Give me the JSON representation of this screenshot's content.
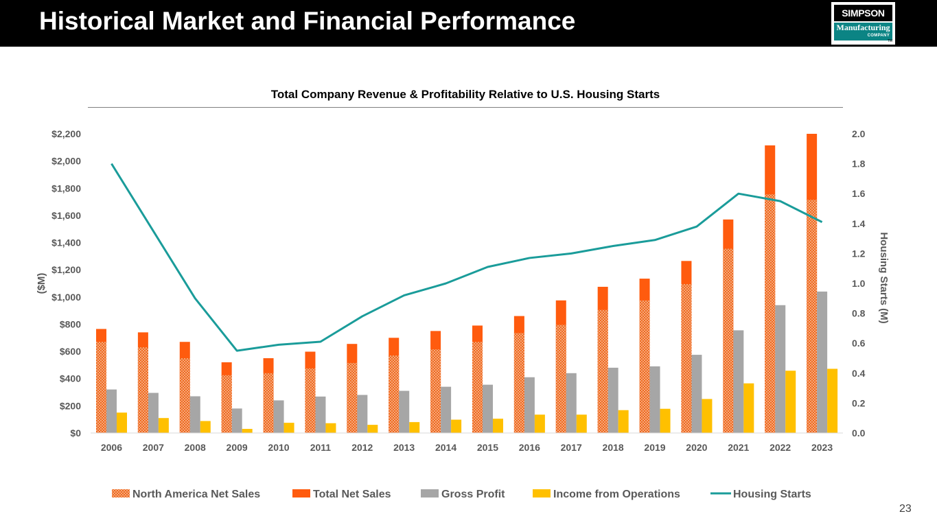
{
  "slide": {
    "title": "Historical Market and Financial Performance",
    "page_number": "23",
    "logo": {
      "line1": "SIMPSON",
      "line2": "Manufacturing",
      "line3": "COMPANY",
      "tm": "TM"
    }
  },
  "colors": {
    "north_america": "#f0752a",
    "total_net_sales": "#ff5b0e",
    "gross_profit": "#a6a6a6",
    "income_ops": "#ffc000",
    "housing_starts": "#1a9c9a",
    "header_bg": "#000000",
    "logo_teal": "#0b8484"
  },
  "chart_data": {
    "type": "bar",
    "title": "Total Company Revenue & Profitability Relative to U.S. Housing Starts",
    "ylabel": "($M)",
    "y2label": "Housing Starts (M)",
    "ylim": [
      0,
      2200
    ],
    "y2lim": [
      0,
      2.0
    ],
    "y_ticks": [
      "$0",
      "$200",
      "$400",
      "$600",
      "$800",
      "$1,000",
      "$1,200",
      "$1,400",
      "$1,600",
      "$1,800",
      "$2,000",
      "$2,200"
    ],
    "y2_ticks": [
      "0.0",
      "0.2",
      "0.4",
      "0.6",
      "0.8",
      "1.0",
      "1.2",
      "1.4",
      "1.6",
      "1.8",
      "2.0"
    ],
    "grid": false,
    "legend_position": "bottom",
    "categories": [
      "2006",
      "2007",
      "2008",
      "2009",
      "2010",
      "2011",
      "2012",
      "2013",
      "2014",
      "2015",
      "2016",
      "2017",
      "2018",
      "2019",
      "2020",
      "2021",
      "2022",
      "2023"
    ],
    "series": [
      {
        "name": "North America Net Sales",
        "kind": "bar-overlay",
        "values": [
          670,
          630,
          550,
          425,
          440,
          475,
          515,
          570,
          615,
          670,
          735,
          795,
          905,
          975,
          1095,
          1355,
          1755,
          1715
        ]
      },
      {
        "name": "Total Net Sales",
        "kind": "bar",
        "values": [
          765,
          740,
          670,
          520,
          550,
          598,
          655,
          700,
          750,
          790,
          860,
          975,
          1075,
          1135,
          1265,
          1570,
          2115,
          2200
        ]
      },
      {
        "name": "Gross Profit",
        "kind": "bar",
        "values": [
          320,
          295,
          270,
          180,
          240,
          268,
          280,
          310,
          340,
          355,
          410,
          440,
          480,
          490,
          575,
          755,
          940,
          1040
        ]
      },
      {
        "name": "Income from Operations",
        "kind": "bar",
        "values": [
          150,
          110,
          88,
          30,
          75,
          72,
          60,
          80,
          98,
          105,
          135,
          135,
          168,
          178,
          250,
          365,
          458,
          472
        ]
      },
      {
        "name": "Housing Starts",
        "kind": "line",
        "axis": "secondary",
        "values": [
          1.8,
          1.35,
          0.9,
          0.55,
          0.59,
          0.61,
          0.78,
          0.92,
          1.0,
          1.11,
          1.17,
          1.2,
          1.25,
          1.29,
          1.38,
          1.6,
          1.55,
          1.41
        ]
      }
    ]
  }
}
